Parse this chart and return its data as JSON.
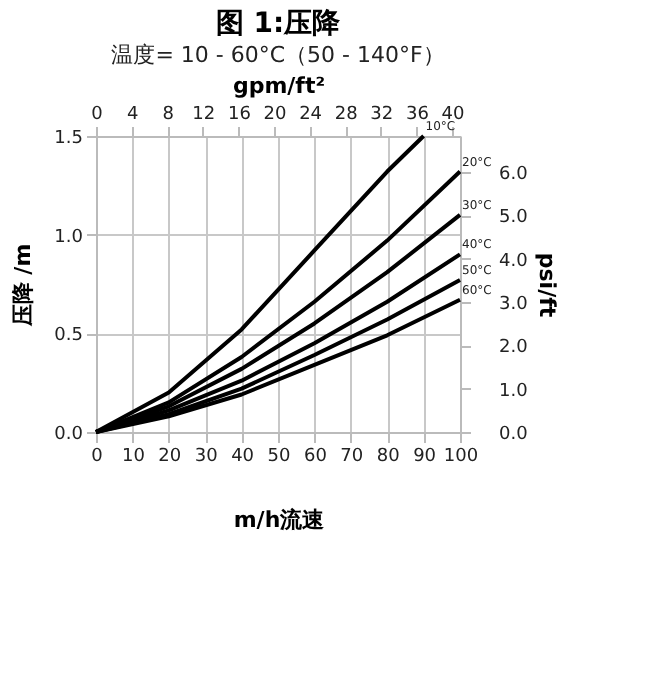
{
  "chart_data": {
    "type": "line",
    "title": "图 1:压降",
    "subtitle": "温度= 10 - 60°C（50 - 140°F）",
    "xlabel": "m/h流速",
    "ylabel": "压降 /m",
    "x2label": "gpm/ft²",
    "y2label": "psi/ft",
    "x": [
      0,
      20,
      40,
      60,
      80,
      100
    ],
    "xlim": [
      0,
      100
    ],
    "xticks": [
      0,
      10,
      20,
      30,
      40,
      50,
      60,
      70,
      80,
      90,
      100
    ],
    "x2lim": [
      0,
      40.9
    ],
    "x2ticks": [
      0,
      4,
      8,
      12,
      16,
      20,
      24,
      28,
      32,
      36,
      40
    ],
    "ylim": [
      0,
      1.5
    ],
    "yticks": [
      {
        "value": 0,
        "label": "0.0"
      },
      {
        "value": 0.5,
        "label": "0.5"
      },
      {
        "value": 1,
        "label": "1.0"
      },
      {
        "value": 1.5,
        "label": "1.5"
      }
    ],
    "y2lim": [
      0,
      6.83
    ],
    "y2ticks": [
      {
        "value": 0,
        "label": "0.0"
      },
      {
        "value": 1,
        "label": "1.0"
      },
      {
        "value": 2,
        "label": "2.0"
      },
      {
        "value": 3,
        "label": "3.0"
      },
      {
        "value": 4,
        "label": "4.0"
      },
      {
        "value": 5,
        "label": "5.0"
      },
      {
        "value": 6,
        "label": "6.0"
      }
    ],
    "grid": true,
    "legend": false,
    "marker": "none",
    "line_style": "solid",
    "series": [
      {
        "name": "10°C",
        "color": "#000000",
        "x": [
          0,
          20,
          40,
          60,
          80,
          90
        ],
        "values": [
          0,
          0.2,
          0.52,
          0.92,
          1.32,
          1.5
        ]
      },
      {
        "name": "20°C",
        "color": "#000000",
        "values": [
          0,
          0.15,
          0.38,
          0.66,
          0.97,
          1.32
        ]
      },
      {
        "name": "30°C",
        "color": "#000000",
        "values": [
          0,
          0.13,
          0.32,
          0.55,
          0.81,
          1.1
        ]
      },
      {
        "name": "40°C",
        "color": "#000000",
        "values": [
          0,
          0.11,
          0.26,
          0.45,
          0.66,
          0.9
        ]
      },
      {
        "name": "50°C",
        "color": "#000000",
        "values": [
          0,
          0.09,
          0.22,
          0.39,
          0.57,
          0.77
        ]
      },
      {
        "name": "60°C",
        "color": "#000000",
        "values": [
          0,
          0.08,
          0.19,
          0.34,
          0.49,
          0.67
        ]
      }
    ]
  }
}
